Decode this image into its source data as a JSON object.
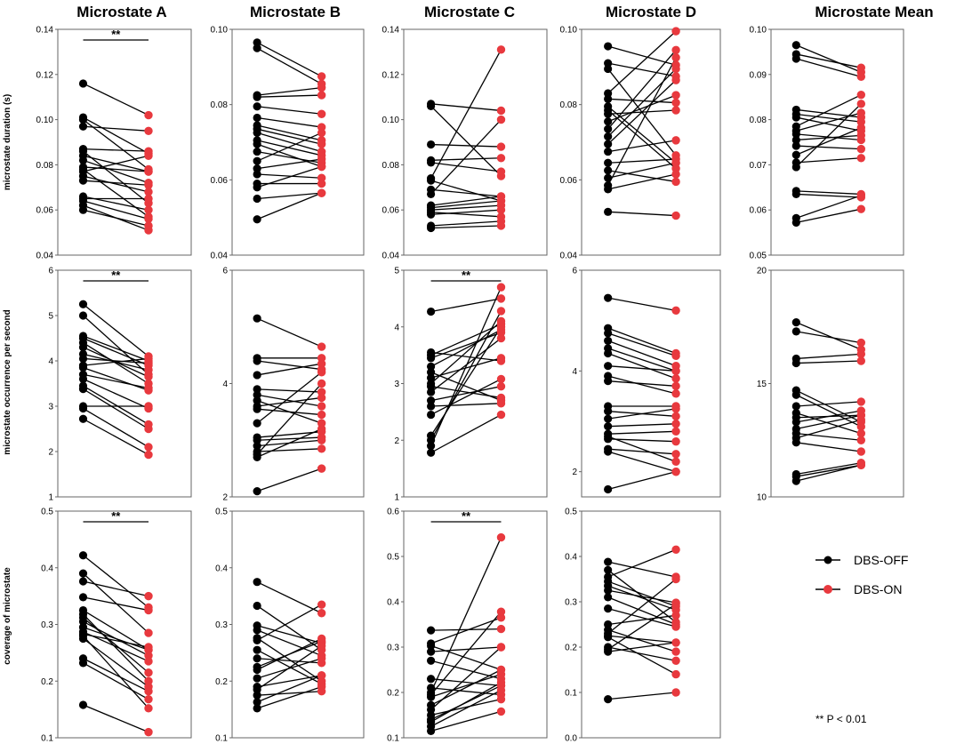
{
  "columns": [
    "Microstate A",
    "Microstate B",
    "Microstate C",
    "Microstate D",
    "Microstate Mean"
  ],
  "row_labels": [
    "microstate duration (s)",
    "microstate occurrence per second",
    "coverage of microstate"
  ],
  "legend": {
    "off": "DBS-OFF",
    "on": "DBS-ON",
    "off_color": "#000000",
    "on_color": "#e8393e"
  },
  "footnote": "** P < 0.01",
  "chart_data": [
    {
      "type": "paired-line",
      "row": 0,
      "col": 0,
      "ylim": [
        0.04,
        0.14
      ],
      "ticks": [
        "0.04",
        "0.06",
        "0.08",
        "0.10",
        "0.12",
        "0.14"
      ],
      "sig": "**",
      "pairs": [
        [
          0.116,
          0.102
        ],
        [
          0.101,
          0.085
        ],
        [
          0.1,
          0.078
        ],
        [
          0.097,
          0.095
        ],
        [
          0.087,
          0.086
        ],
        [
          0.086,
          0.063
        ],
        [
          0.084,
          0.077
        ],
        [
          0.082,
          0.072
        ],
        [
          0.079,
          0.077
        ],
        [
          0.078,
          0.057
        ],
        [
          0.077,
          0.084
        ],
        [
          0.075,
          0.068
        ],
        [
          0.073,
          0.071
        ],
        [
          0.066,
          0.06
        ],
        [
          0.065,
          0.065
        ],
        [
          0.064,
          0.056
        ],
        [
          0.062,
          0.051
        ],
        [
          0.06,
          0.053
        ]
      ]
    },
    {
      "type": "paired-line",
      "row": 0,
      "col": 1,
      "ylim": [
        0.04,
        0.1
      ],
      "ticks": [
        "0.04",
        "0.06",
        "0.08",
        "0.10"
      ],
      "pairs": [
        [
          0.0965,
          0.0875
        ],
        [
          0.095,
          0.0855
        ],
        [
          0.0825,
          0.0845
        ],
        [
          0.082,
          0.0825
        ],
        [
          0.0795,
          0.0775
        ],
        [
          0.0765,
          0.074
        ],
        [
          0.0745,
          0.0705
        ],
        [
          0.0735,
          0.0695
        ],
        [
          0.0725,
          0.0675
        ],
        [
          0.0705,
          0.0665
        ],
        [
          0.0695,
          0.0635
        ],
        [
          0.0675,
          0.0645
        ],
        [
          0.065,
          0.0725
        ],
        [
          0.063,
          0.0655
        ],
        [
          0.0615,
          0.0605
        ],
        [
          0.059,
          0.059
        ],
        [
          0.058,
          0.0635
        ],
        [
          0.055,
          0.0565
        ],
        [
          0.0495,
          0.0565
        ]
      ]
    },
    {
      "type": "paired-line",
      "row": 0,
      "col": 2,
      "ylim": [
        0.04,
        0.14
      ],
      "ticks": [
        "0.04",
        "0.06",
        "0.08",
        "0.10",
        "0.12",
        "0.14"
      ],
      "pairs": [
        [
          0.107,
          0.104
        ],
        [
          0.106,
          0.075
        ],
        [
          0.089,
          0.088
        ],
        [
          0.082,
          0.083
        ],
        [
          0.081,
          0.077
        ],
        [
          0.074,
          0.131
        ],
        [
          0.073,
          0.064
        ],
        [
          0.069,
          0.066
        ],
        [
          0.067,
          0.1
        ],
        [
          0.062,
          0.066
        ],
        [
          0.061,
          0.064
        ],
        [
          0.06,
          0.062
        ],
        [
          0.059,
          0.057
        ],
        [
          0.058,
          0.06
        ],
        [
          0.053,
          0.055
        ],
        [
          0.052,
          0.053
        ]
      ]
    },
    {
      "type": "paired-line",
      "row": 0,
      "col": 3,
      "ylim": [
        0.04,
        0.1
      ],
      "ticks": [
        "0.04",
        "0.06",
        "0.08",
        "0.10"
      ],
      "pairs": [
        [
          0.0955,
          0.0905
        ],
        [
          0.091,
          0.0875
        ],
        [
          0.0895,
          0.0665
        ],
        [
          0.083,
          0.0995
        ],
        [
          0.0815,
          0.0805
        ],
        [
          0.0795,
          0.0645
        ],
        [
          0.0785,
          0.063
        ],
        [
          0.0775,
          0.0785
        ],
        [
          0.0755,
          0.0825
        ],
        [
          0.0735,
          0.0945
        ],
        [
          0.0715,
          0.0895
        ],
        [
          0.0695,
          0.0865
        ],
        [
          0.0675,
          0.0705
        ],
        [
          0.0645,
          0.0655
        ],
        [
          0.0625,
          0.0595
        ],
        [
          0.0605,
          0.0645
        ],
        [
          0.0585,
          0.0925
        ],
        [
          0.0575,
          0.0615
        ],
        [
          0.0515,
          0.0505
        ]
      ]
    },
    {
      "type": "paired-line",
      "row": 0,
      "col": 4,
      "ylim": [
        0.05,
        0.1
      ],
      "ticks": [
        "0.05",
        "0.06",
        "0.07",
        "0.08",
        "0.09",
        "0.10"
      ],
      "pairs": [
        [
          0.0965,
          0.0905
        ],
        [
          0.0945,
          0.0915
        ],
        [
          0.0935,
          0.0895
        ],
        [
          0.0822,
          0.0805
        ],
        [
          0.0812,
          0.0795
        ],
        [
          0.0805,
          0.0775
        ],
        [
          0.0785,
          0.0855
        ],
        [
          0.0775,
          0.0815
        ],
        [
          0.0768,
          0.0755
        ],
        [
          0.0755,
          0.0765
        ],
        [
          0.0742,
          0.0735
        ],
        [
          0.0722,
          0.0782
        ],
        [
          0.0705,
          0.0715
        ],
        [
          0.0695,
          0.0835
        ],
        [
          0.0642,
          0.0635
        ],
        [
          0.0635,
          0.0628
        ],
        [
          0.0582,
          0.0632
        ],
        [
          0.0572,
          0.0602
        ]
      ]
    },
    {
      "type": "paired-line",
      "row": 1,
      "col": 0,
      "ylim": [
        1,
        6
      ],
      "ticks": [
        "1",
        "2",
        "3",
        "4",
        "5",
        "6"
      ],
      "sig": "**",
      "pairs": [
        [
          5.25,
          4.1
        ],
        [
          5.0,
          3.7
        ],
        [
          4.55,
          4.0
        ],
        [
          4.5,
          3.9
        ],
        [
          4.4,
          3.5
        ],
        [
          4.3,
          3.65
        ],
        [
          4.15,
          3.8
        ],
        [
          4.05,
          3.95
        ],
        [
          3.9,
          4.05
        ],
        [
          3.85,
          3.35
        ],
        [
          3.7,
          3.4
        ],
        [
          3.6,
          2.95
        ],
        [
          3.45,
          2.6
        ],
        [
          3.38,
          2.5
        ],
        [
          3.0,
          3.0
        ],
        [
          2.95,
          2.1
        ],
        [
          2.72,
          1.93
        ]
      ]
    },
    {
      "type": "paired-line",
      "row": 1,
      "col": 1,
      "ylim": [
        2,
        6
      ],
      "ticks": [
        "2",
        "4",
        "6"
      ],
      "pairs": [
        [
          5.15,
          4.65
        ],
        [
          4.45,
          4.45
        ],
        [
          4.4,
          4.25
        ],
        [
          4.15,
          4.35
        ],
        [
          3.9,
          3.85
        ],
        [
          3.8,
          3.6
        ],
        [
          3.7,
          3.3
        ],
        [
          3.6,
          3.75
        ],
        [
          3.55,
          3.45
        ],
        [
          3.3,
          4.2
        ],
        [
          3.05,
          3.15
        ],
        [
          3.0,
          3.05
        ],
        [
          2.9,
          3.0
        ],
        [
          2.8,
          2.85
        ],
        [
          2.75,
          4.0
        ],
        [
          2.7,
          3.2
        ],
        [
          2.1,
          2.5
        ]
      ]
    },
    {
      "type": "paired-line",
      "row": 1,
      "col": 2,
      "ylim": [
        1,
        5
      ],
      "ticks": [
        "1",
        "2",
        "3",
        "4",
        "5"
      ],
      "sig": "**",
      "pairs": [
        [
          4.27,
          4.5
        ],
        [
          3.55,
          3.4
        ],
        [
          3.5,
          4.05
        ],
        [
          3.45,
          3.9
        ],
        [
          3.3,
          3.95
        ],
        [
          3.2,
          2.7
        ],
        [
          3.1,
          3.45
        ],
        [
          3.0,
          4.1
        ],
        [
          2.95,
          2.75
        ],
        [
          2.85,
          3.8
        ],
        [
          2.7,
          2.95
        ],
        [
          2.6,
          2.65
        ],
        [
          2.45,
          3.08
        ],
        [
          2.08,
          4.0
        ],
        [
          2.0,
          4.28
        ],
        [
          1.9,
          4.7
        ],
        [
          1.78,
          2.45
        ]
      ]
    },
    {
      "type": "paired-line",
      "row": 1,
      "col": 3,
      "ylim": [
        1.5,
        6
      ],
      "ticks": [
        "2",
        "4",
        "6"
      ],
      "pairs": [
        [
          5.45,
          5.2
        ],
        [
          4.85,
          4.35
        ],
        [
          4.75,
          4.3
        ],
        [
          4.6,
          4.1
        ],
        [
          4.45,
          4.0
        ],
        [
          4.35,
          3.85
        ],
        [
          4.1,
          4.0
        ],
        [
          3.9,
          3.55
        ],
        [
          3.8,
          3.7
        ],
        [
          3.3,
          3.3
        ],
        [
          3.2,
          3.1
        ],
        [
          3.05,
          3.25
        ],
        [
          2.9,
          2.95
        ],
        [
          2.75,
          2.8
        ],
        [
          2.7,
          2.2
        ],
        [
          2.65,
          2.6
        ],
        [
          2.45,
          2.35
        ],
        [
          2.4,
          2.0
        ],
        [
          1.65,
          2.0
        ]
      ]
    },
    {
      "type": "paired-line",
      "row": 1,
      "col": 4,
      "ylim": [
        10,
        20
      ],
      "ticks": [
        "10",
        "15",
        "20"
      ],
      "pairs": [
        [
          17.7,
          16.5
        ],
        [
          17.3,
          16.8
        ],
        [
          16.1,
          16.3
        ],
        [
          15.9,
          16.0
        ],
        [
          14.7,
          13.3
        ],
        [
          14.5,
          13.1
        ],
        [
          14.0,
          14.2
        ],
        [
          13.7,
          12.8
        ],
        [
          13.5,
          13.6
        ],
        [
          13.3,
          13.8
        ],
        [
          13.0,
          13.6
        ],
        [
          12.8,
          12.5
        ],
        [
          12.6,
          13.4
        ],
        [
          12.4,
          12.0
        ],
        [
          11.0,
          11.5
        ],
        [
          10.9,
          11.4
        ],
        [
          10.7,
          11.4
        ]
      ]
    },
    {
      "type": "paired-line",
      "row": 2,
      "col": 0,
      "ylim": [
        0.1,
        0.5
      ],
      "ticks": [
        "0.1",
        "0.2",
        "0.3",
        "0.4",
        "0.5"
      ],
      "sig": "**",
      "pairs": [
        [
          0.422,
          0.33
        ],
        [
          0.39,
          0.285
        ],
        [
          0.376,
          0.35
        ],
        [
          0.348,
          0.325
        ],
        [
          0.325,
          0.255
        ],
        [
          0.318,
          0.2
        ],
        [
          0.312,
          0.215
        ],
        [
          0.305,
          0.245
        ],
        [
          0.295,
          0.255
        ],
        [
          0.287,
          0.235
        ],
        [
          0.283,
          0.26
        ],
        [
          0.28,
          0.152
        ],
        [
          0.275,
          0.19
        ],
        [
          0.24,
          0.182
        ],
        [
          0.232,
          0.168
        ],
        [
          0.158,
          0.11
        ]
      ]
    },
    {
      "type": "paired-line",
      "row": 2,
      "col": 1,
      "ylim": [
        0.1,
        0.5
      ],
      "ticks": [
        "0.1",
        "0.2",
        "0.3",
        "0.4",
        "0.5"
      ],
      "pairs": [
        [
          0.375,
          0.32
        ],
        [
          0.333,
          0.255
        ],
        [
          0.298,
          0.267
        ],
        [
          0.29,
          0.245
        ],
        [
          0.276,
          0.2
        ],
        [
          0.272,
          0.335
        ],
        [
          0.255,
          0.195
        ],
        [
          0.24,
          0.232
        ],
        [
          0.225,
          0.27
        ],
        [
          0.22,
          0.275
        ],
        [
          0.205,
          0.24
        ],
        [
          0.19,
          0.21
        ],
        [
          0.185,
          0.262
        ],
        [
          0.175,
          0.182
        ],
        [
          0.163,
          0.21
        ],
        [
          0.152,
          0.19
        ]
      ]
    },
    {
      "type": "paired-line",
      "row": 2,
      "col": 2,
      "ylim": [
        0.1,
        0.6
      ],
      "ticks": [
        "0.1",
        "0.2",
        "0.3",
        "0.4",
        "0.5",
        "0.6"
      ],
      "sig": "**",
      "pairs": [
        [
          0.337,
          0.34
        ],
        [
          0.308,
          0.365
        ],
        [
          0.303,
          0.25
        ],
        [
          0.29,
          0.3
        ],
        [
          0.27,
          0.23
        ],
        [
          0.23,
          0.215
        ],
        [
          0.21,
          0.195
        ],
        [
          0.2,
          0.542
        ],
        [
          0.195,
          0.378
        ],
        [
          0.19,
          0.24
        ],
        [
          0.172,
          0.25
        ],
        [
          0.162,
          0.3
        ],
        [
          0.15,
          0.185
        ],
        [
          0.14,
          0.215
        ],
        [
          0.135,
          0.222
        ],
        [
          0.125,
          0.205
        ],
        [
          0.115,
          0.158
        ]
      ]
    },
    {
      "type": "paired-line",
      "row": 2,
      "col": 3,
      "ylim": [
        0.0,
        0.5
      ],
      "ticks": [
        "0.0",
        "0.1",
        "0.2",
        "0.3",
        "0.4",
        "0.5"
      ],
      "pairs": [
        [
          0.388,
          0.355
        ],
        [
          0.37,
          0.255
        ],
        [
          0.355,
          0.415
        ],
        [
          0.345,
          0.29
        ],
        [
          0.335,
          0.282
        ],
        [
          0.325,
          0.298
        ],
        [
          0.31,
          0.25
        ],
        [
          0.285,
          0.245
        ],
        [
          0.25,
          0.27
        ],
        [
          0.238,
          0.19
        ],
        [
          0.23,
          0.35
        ],
        [
          0.225,
          0.21
        ],
        [
          0.222,
          0.14
        ],
        [
          0.2,
          0.17
        ],
        [
          0.195,
          0.295
        ],
        [
          0.19,
          0.21
        ],
        [
          0.085,
          0.1
        ]
      ]
    }
  ]
}
